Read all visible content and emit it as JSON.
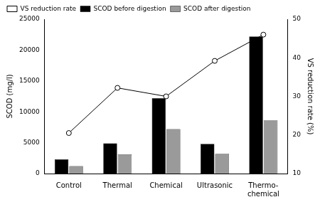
{
  "chart_data": {
    "type": "bar",
    "categories": [
      "Control",
      "Thermal",
      "Chemical",
      "Ultrasonic",
      "Thermo-chemical"
    ],
    "series": [
      {
        "name": "SCOD before digestion",
        "type": "bar",
        "color": "#000000",
        "values": [
          2300,
          4900,
          12200,
          4800,
          22200
        ]
      },
      {
        "name": "SCOD after digestion",
        "type": "bar",
        "color": "#9a9a9a",
        "values": [
          1200,
          3100,
          7200,
          3200,
          8600
        ]
      },
      {
        "name": "VS reduction rate",
        "type": "line",
        "axis": "y2",
        "color": "#000000",
        "marker": "circle",
        "line_style": "solid",
        "values": [
          20.5,
          32.2,
          30.0,
          39.2,
          46.0
        ]
      }
    ],
    "y_label": "SCOD (mg/l)",
    "y2_label": "VS reduction rate (%)",
    "ylim": [
      0,
      25000
    ],
    "yticks": [
      0,
      5000,
      10000,
      15000,
      20000,
      25000
    ],
    "y2lim": [
      10,
      50
    ],
    "y2ticks": [
      10,
      20,
      30,
      40,
      50
    ],
    "grid": false,
    "legend": "upper left"
  }
}
